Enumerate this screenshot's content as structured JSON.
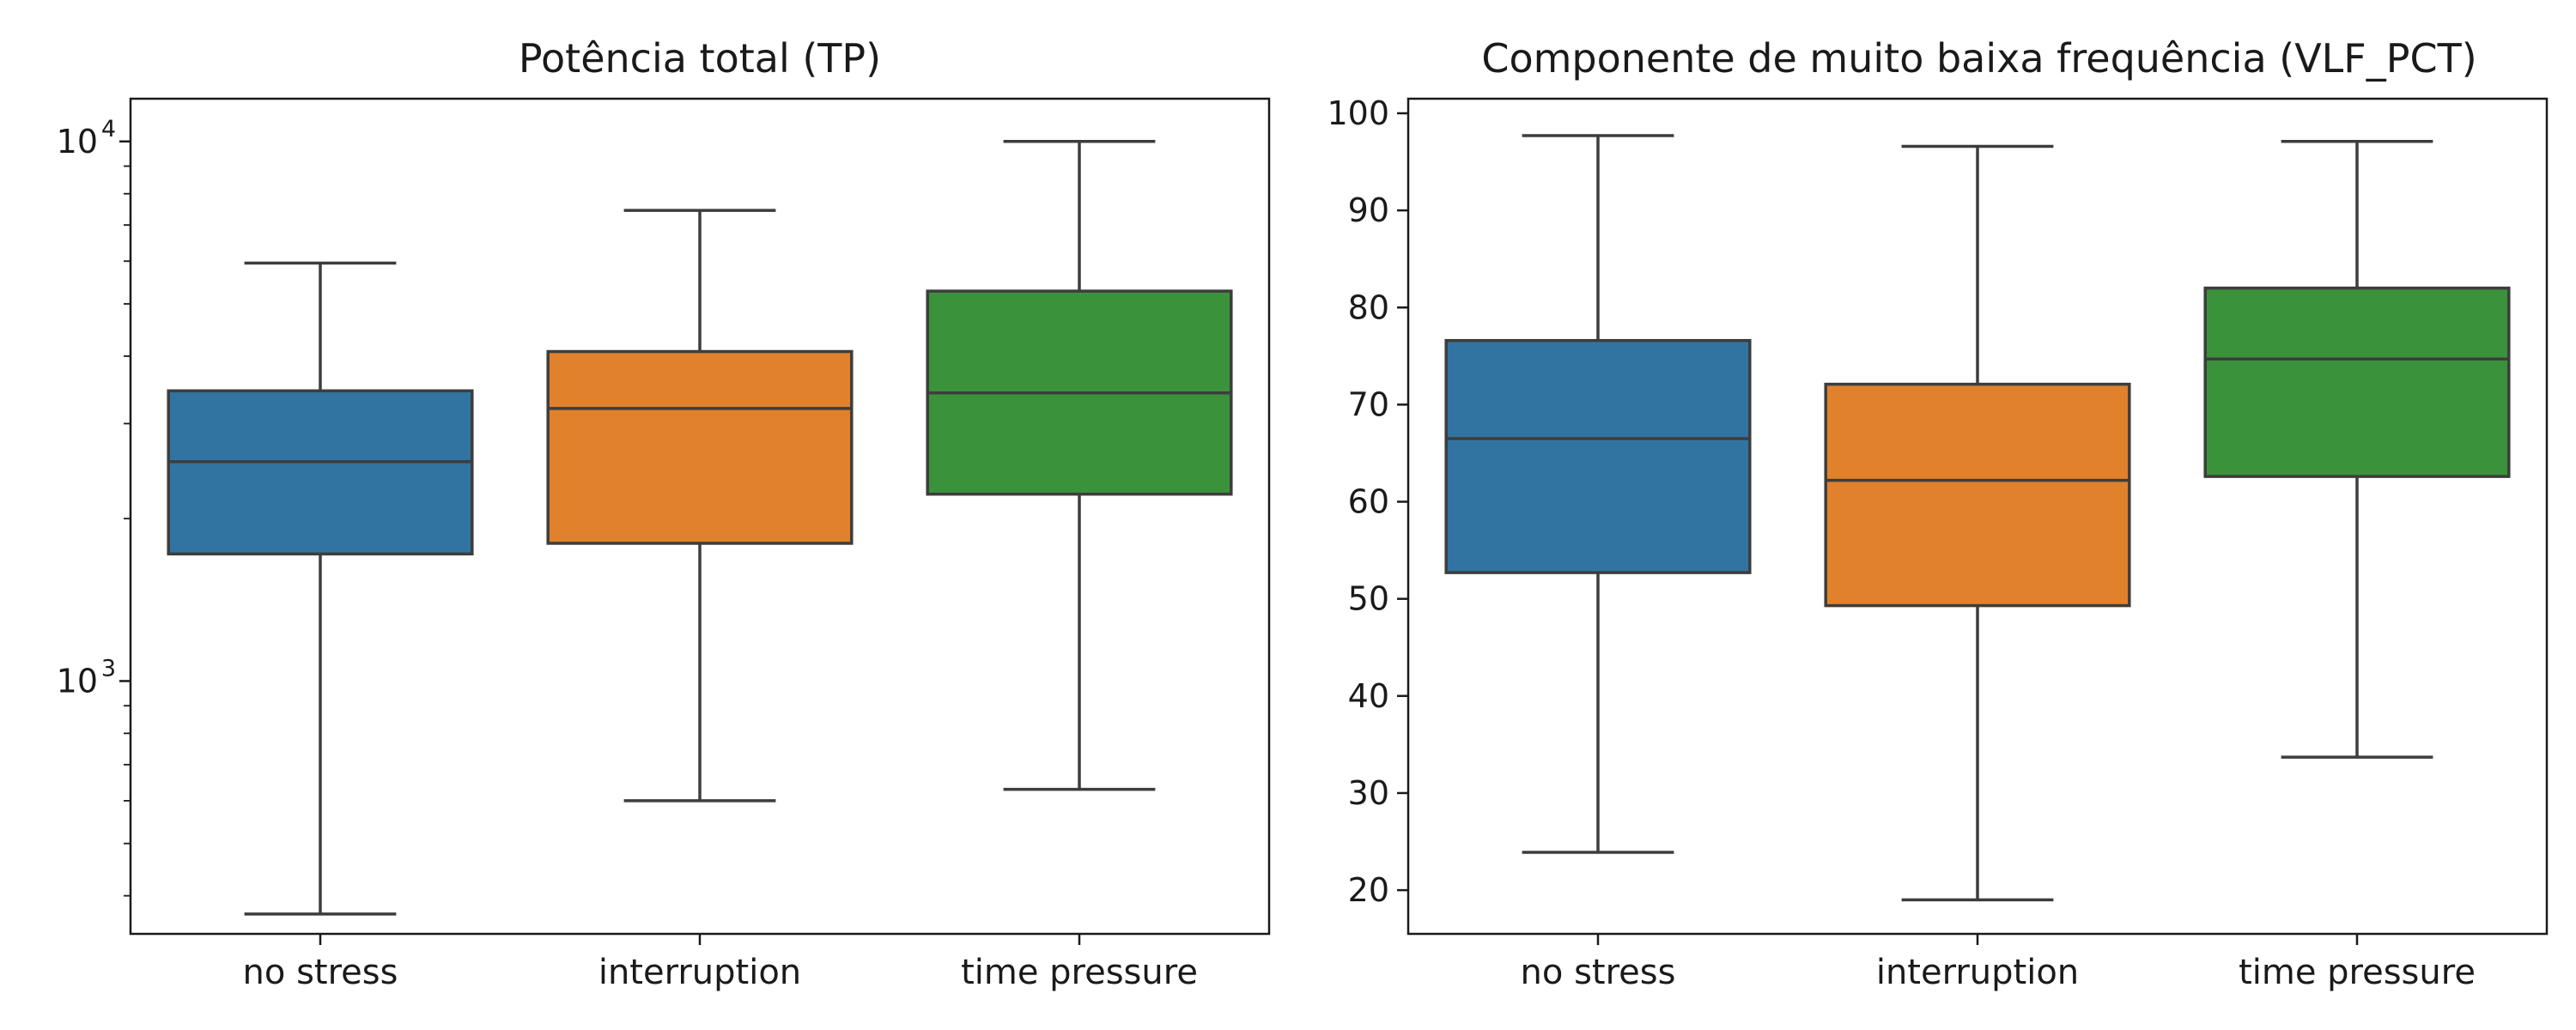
{
  "figure": {
    "background": "#ffffff"
  },
  "chart_data": [
    {
      "type": "box",
      "title": "Potência total (TP)",
      "xlabel": "",
      "ylabel": "",
      "yscale": "log",
      "ylim": [
        340,
        12000
      ],
      "yticks": [
        {
          "value": 1000,
          "base": "10",
          "exp": "3"
        },
        {
          "value": 10000,
          "base": "10",
          "exp": "4"
        }
      ],
      "categories": [
        "no stress",
        "interruption",
        "time pressure"
      ],
      "colors": [
        "#3274a1",
        "#e1812c",
        "#3a923a"
      ],
      "boxes": [
        {
          "whislo": 370,
          "q1": 1720,
          "med": 2550,
          "q3": 3450,
          "whishi": 5950
        },
        {
          "whislo": 600,
          "q1": 1800,
          "med": 3200,
          "q3": 4080,
          "whishi": 7450
        },
        {
          "whislo": 630,
          "q1": 2220,
          "med": 3420,
          "q3": 5280,
          "whishi": 10000
        }
      ]
    },
    {
      "type": "box",
      "title": "Componente de muito baixa frequência (VLF_PCT)",
      "xlabel": "",
      "ylabel": "",
      "yscale": "linear",
      "ylim": [
        15.5,
        101.5
      ],
      "yticks": [
        20,
        30,
        40,
        50,
        60,
        70,
        80,
        90,
        100
      ],
      "categories": [
        "no stress",
        "interruption",
        "time pressure"
      ],
      "colors": [
        "#3274a1",
        "#e1812c",
        "#3a923a"
      ],
      "boxes": [
        {
          "whislo": 23.9,
          "q1": 52.7,
          "med": 66.5,
          "q3": 76.6,
          "whishi": 97.7
        },
        {
          "whislo": 19.0,
          "q1": 49.3,
          "med": 62.2,
          "q3": 72.1,
          "whishi": 96.6
        },
        {
          "whislo": 33.7,
          "q1": 62.6,
          "med": 74.7,
          "q3": 82.0,
          "whishi": 97.1
        }
      ]
    }
  ]
}
